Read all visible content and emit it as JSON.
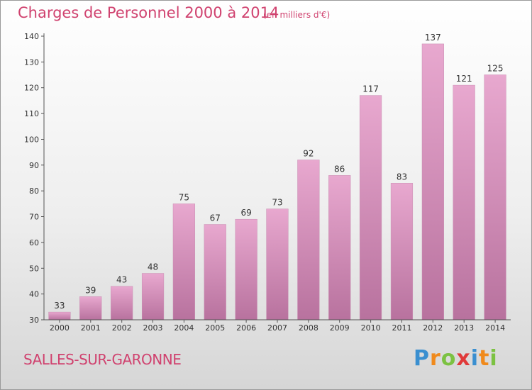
{
  "chart_data": {
    "type": "bar",
    "title": "Charges de Personnel 2000 à 2014",
    "subtitle": "(en milliers d'€)",
    "categories": [
      "2000",
      "2001",
      "2002",
      "2003",
      "2004",
      "2005",
      "2006",
      "2007",
      "2008",
      "2009",
      "2010",
      "2011",
      "2012",
      "2013",
      "2014"
    ],
    "values": [
      33,
      39,
      43,
      48,
      75,
      67,
      69,
      73,
      92,
      86,
      117,
      83,
      137,
      121,
      125
    ],
    "ylim": [
      30,
      140
    ],
    "yticks": [
      30,
      40,
      50,
      60,
      70,
      80,
      90,
      100,
      110,
      120,
      130,
      140
    ],
    "grid": false,
    "bar_color_top": "#e8a8cf",
    "bar_color_bottom": "#b8729e"
  },
  "footer": {
    "town": "SALLES-SUR-GARONNE",
    "logo_letters": [
      "P",
      "r",
      "o",
      "x",
      "i",
      "t",
      "i"
    ],
    "logo_colors": [
      "#3a8fd0",
      "#f08a1c",
      "#7cc242",
      "#e03a3a",
      "#3a8fd0",
      "#f08a1c",
      "#7cc242"
    ]
  }
}
